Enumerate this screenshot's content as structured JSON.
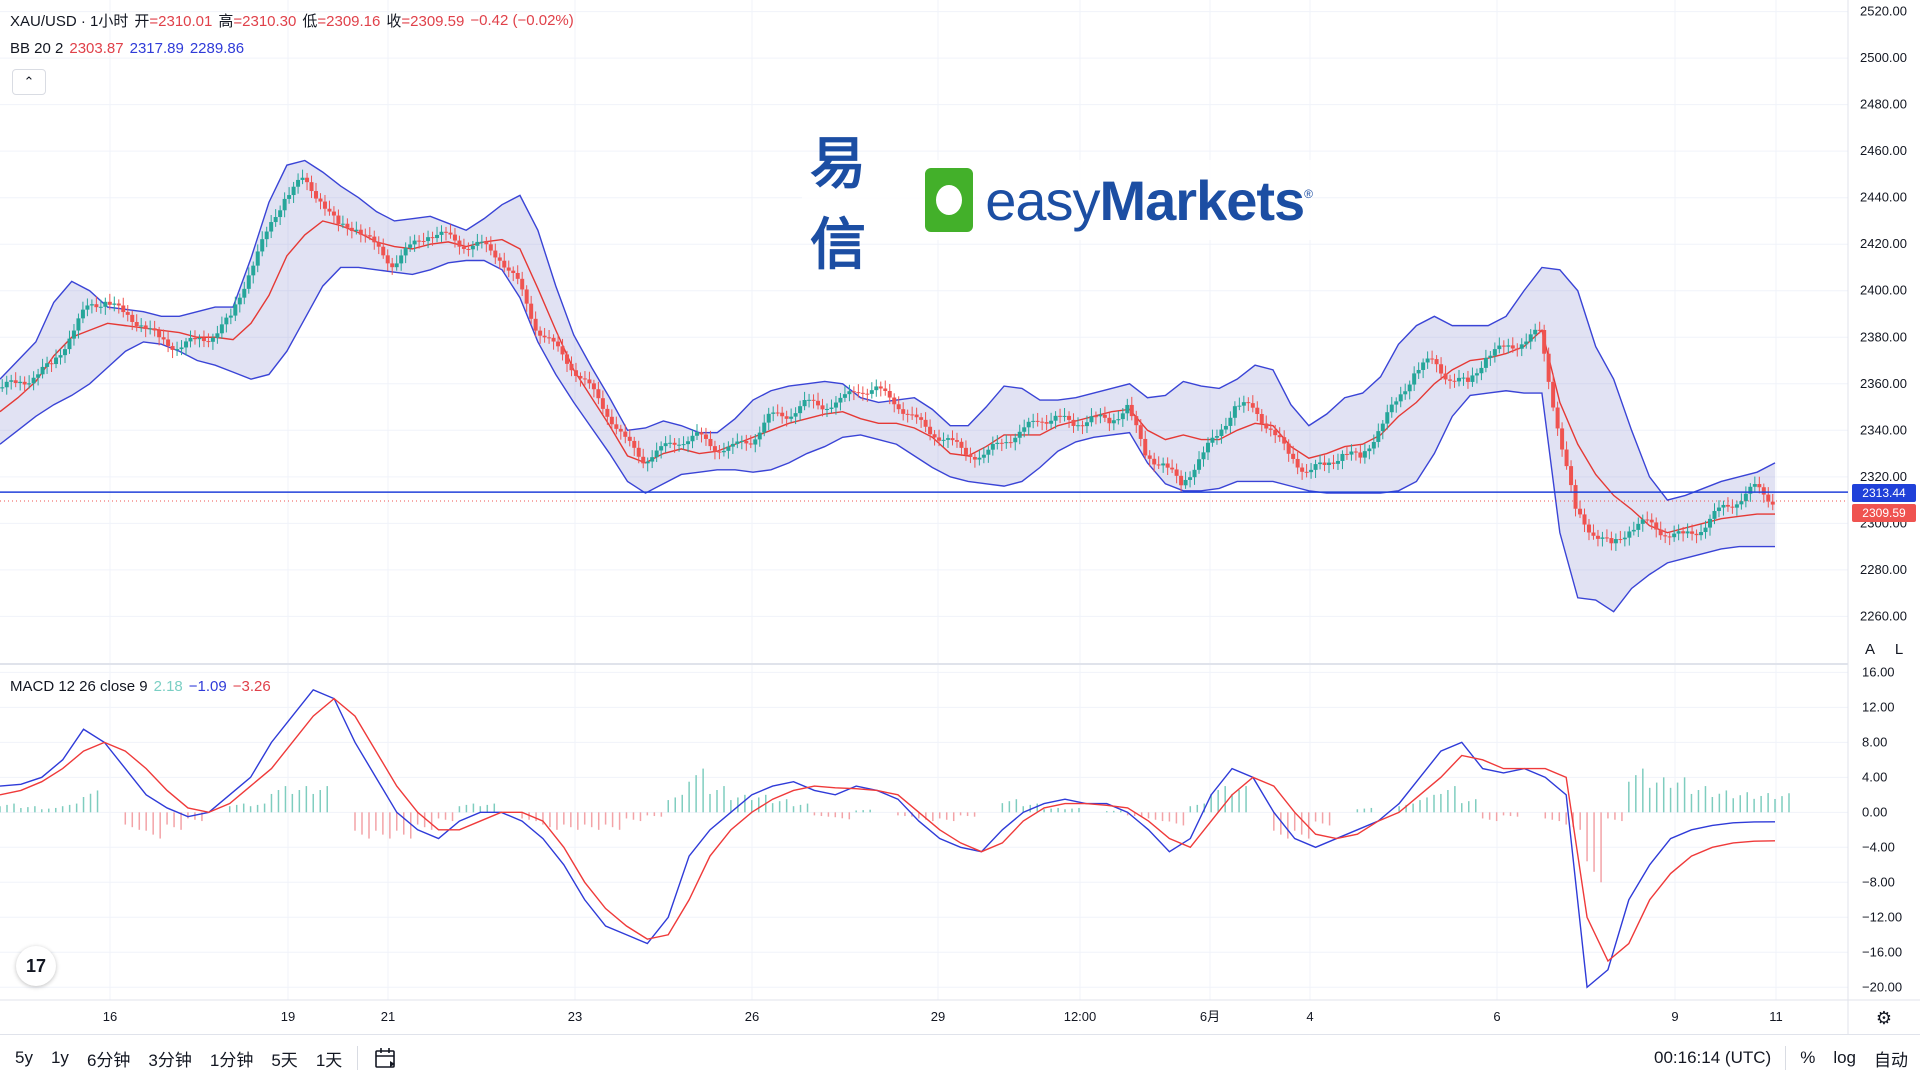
{
  "symbol": {
    "title": "XAU/USD · 1小时",
    "open_label": "开",
    "open": "=2310.01",
    "high_label": "高",
    "high": "=2310.30",
    "low_label": "低",
    "low": "=2309.16",
    "close_label": "收",
    "close": "=2309.59",
    "change": "−0.42 (−0.02%)"
  },
  "bb_legend": {
    "label": "BB 20 2",
    "basis": "2303.87",
    "upper": "2317.89",
    "lower": "2289.86"
  },
  "macd_legend": {
    "label": "MACD 12 26 close 9",
    "hist": "2.18",
    "macd": "−1.09",
    "signal": "−3.26"
  },
  "collapse_icon": "chevron-up-icon",
  "logo": {
    "cn": "易信",
    "en_light": "easy",
    "en_bold": "Markets",
    "reg": "®"
  },
  "price_tags": {
    "line": "2313.44",
    "last": "2309.59"
  },
  "scale_buttons": [
    "A",
    "L"
  ],
  "timeframes": [
    "5y",
    "1y",
    "6分钟",
    "3分钟",
    "1分钟",
    "5天",
    "1天"
  ],
  "status": {
    "time": "00:16:14 (UTC)",
    "percent": "%",
    "log": "log",
    "auto": "自动"
  },
  "colors": {
    "up": "#26a69a",
    "down": "#ef5350",
    "bb_band": "#3a44d6",
    "bb_basis": "#e53935",
    "bb_fill": "rgba(120,123,200,0.22)",
    "macd": "#2f3bd8",
    "signal": "#ef3a3a",
    "hline": "#2041d9"
  },
  "chart_data": [
    {
      "type": "line",
      "name": "XAU/USD 1h price with Bollinger Bands",
      "title": "XAU/USD · 1小时",
      "y_ticks": [
        2520,
        2500,
        2480,
        2460,
        2440,
        2420,
        2400,
        2380,
        2360,
        2340,
        2320,
        2300,
        2280,
        2260
      ],
      "ylim": [
        2255,
        2525
      ],
      "x_ticks": [
        "16",
        "19",
        "21",
        "23",
        "26",
        "29",
        "12:00",
        "6月",
        "4",
        "6",
        "9",
        "11"
      ],
      "horizontal_line": 2313.44,
      "last_price": 2309.59,
      "series": [
        {
          "name": "close",
          "x": [
            0,
            20,
            40,
            60,
            80,
            100,
            120,
            140,
            160,
            180,
            200,
            220,
            240,
            260,
            280,
            300,
            320,
            340,
            360,
            380,
            400,
            420,
            440,
            460,
            480,
            500,
            520,
            540,
            560,
            580,
            600,
            620,
            640,
            660,
            680,
            700,
            720,
            740,
            760,
            780,
            800,
            820,
            840,
            860,
            880,
            900,
            920,
            940,
            960,
            980,
            1000,
            1020,
            1040,
            1060,
            1080,
            1100,
            1120,
            1140,
            1160,
            1180,
            1200,
            1220,
            1240,
            1260,
            1280,
            1300,
            1320,
            1340,
            1360,
            1380,
            1400,
            1420,
            1440,
            1460,
            1480,
            1500,
            1520,
            1540,
            1560,
            1580,
            1600,
            1620,
            1640,
            1660,
            1680,
            1700,
            1720,
            1740,
            1760,
            1780
          ],
          "values": [
            2358,
            2360,
            2363,
            2368,
            2380,
            2393,
            2396,
            2390,
            2386,
            2379,
            2376,
            2378,
            2381,
            2388,
            2408,
            2424,
            2441,
            2447,
            2440,
            2427,
            2428,
            2419,
            2412,
            2418,
            2425,
            2423,
            2420,
            2419,
            2415,
            2403,
            2385,
            2376,
            2368,
            2358,
            2348,
            2335,
            2328,
            2331,
            2336,
            2337,
            2333,
            2332,
            2336,
            2345,
            2347,
            2351,
            2351,
            2352,
            2358,
            2357,
            2353,
            2345,
            2340,
            2335,
            2331,
            2328,
            2336,
            2338,
            2345,
            2345,
            2343,
            2345,
            2344,
            2350,
            2330,
            2325,
            2317,
            2327,
            2338,
            2350,
            2350,
            2340,
            2330,
            2322,
            2325,
            2330,
            2328,
            2340,
            2352,
            2365,
            2370,
            2362,
            2360,
            2372,
            2375,
            2378,
            2382,
            2342,
            2305,
            2296
          ],
          "values_tail": {
            "x": [
              1800,
              1820,
              1840,
              1860,
              1880,
              1900,
              1920,
              1940,
              1960,
              1980
            ],
            "values": [
              2290,
              2298,
              2300,
              2296,
              2294,
              2298,
              2305,
              2310,
              2315,
              2310
            ]
          }
        },
        {
          "name": "upper band",
          "values_desc": "approx",
          "values": [
            2362,
            2370,
            2378,
            2395,
            2404,
            2400,
            2393,
            2392,
            2391,
            2389,
            2389,
            2391,
            2393,
            2393,
            2414,
            2438,
            2454,
            2456,
            2451,
            2445,
            2440,
            2434,
            2430,
            2431,
            2432,
            2429,
            2426,
            2431,
            2437,
            2441,
            2426,
            2402,
            2381,
            2367,
            2354,
            2340,
            2341,
            2344,
            2342,
            2339,
            2339,
            2345,
            2353,
            2357,
            2359,
            2360,
            2361,
            2360,
            2354,
            2352,
            2353,
            2354,
            2349,
            2342,
            2342,
            2350,
            2359,
            2358,
            2353,
            2353,
            2354,
            2356,
            2358,
            2360,
            2354,
            2355,
            2361,
            2359,
            2358,
            2362,
            2368,
            2366,
            2351,
            2342,
            2347,
            2354,
            2356,
            2363,
            2377,
            2385,
            2389,
            2385,
            2385,
            2385,
            2389,
            2400,
            2410,
            2409,
            2400,
            2376
          ]
        },
        {
          "name": "lower band",
          "values": [
            2334,
            2340,
            2346,
            2351,
            2355,
            2360,
            2367,
            2374,
            2378,
            2377,
            2374,
            2370,
            2368,
            2365,
            2362,
            2364,
            2374,
            2388,
            2402,
            2410,
            2410,
            2409,
            2408,
            2407,
            2409,
            2412,
            2413,
            2413,
            2409,
            2397,
            2378,
            2364,
            2352,
            2341,
            2330,
            2318,
            2313,
            2317,
            2321,
            2322,
            2323,
            2323,
            2322,
            2323,
            2326,
            2330,
            2333,
            2337,
            2338,
            2336,
            2334,
            2329,
            2324,
            2320,
            2318,
            2317,
            2316,
            2318,
            2324,
            2331,
            2335,
            2337,
            2338,
            2339,
            2326,
            2317,
            2314,
            2314,
            2315,
            2318,
            2318,
            2318,
            2316,
            2314,
            2313,
            2313,
            2313,
            2313,
            2314,
            2318,
            2330,
            2346,
            2355,
            2356,
            2357,
            2356,
            2356,
            2296,
            2268,
            2267
          ]
        },
        {
          "name": "basis",
          "values": [
            2348,
            2354,
            2361,
            2372,
            2380,
            2383,
            2386,
            2385,
            2384,
            2383,
            2382,
            2380,
            2380,
            2379,
            2386,
            2398,
            2415,
            2424,
            2430,
            2428,
            2425,
            2421,
            2419,
            2418,
            2420,
            2421,
            2419,
            2421,
            2422,
            2418,
            2401,
            2383,
            2366,
            2354,
            2342,
            2329,
            2326,
            2330,
            2332,
            2330,
            2331,
            2334,
            2337,
            2340,
            2343,
            2345,
            2347,
            2348,
            2345,
            2343,
            2343,
            2341,
            2337,
            2330,
            2329,
            2333,
            2338,
            2338,
            2338,
            2342,
            2344,
            2346,
            2348,
            2349,
            2340,
            2336,
            2338,
            2336,
            2336,
            2340,
            2343,
            2342,
            2333,
            2328,
            2330,
            2333,
            2334,
            2338,
            2346,
            2352,
            2360,
            2366,
            2370,
            2371,
            2373,
            2376,
            2383,
            2352,
            2334,
            2321
          ]
        }
      ]
    },
    {
      "type": "bar",
      "name": "MACD 12 26 close 9",
      "y_ticks": [
        16,
        12,
        8,
        4,
        0,
        -4,
        -8,
        -12,
        -16,
        -20
      ],
      "ylim": [
        -21,
        16.5
      ],
      "series": [
        {
          "name": "MACD",
          "values": [
            3,
            3.2,
            4,
            6,
            9.5,
            8,
            5,
            2,
            0.5,
            -0.5,
            0,
            2,
            4,
            8,
            11,
            14,
            13,
            8,
            4,
            0,
            -2,
            -3,
            -1,
            0,
            0,
            -1,
            -3,
            -6,
            -10,
            -13,
            -14,
            -15,
            -12,
            -5,
            -2,
            0,
            2,
            3,
            3.5,
            2.5,
            2,
            3,
            2.5,
            1.5,
            -1,
            -3,
            -4,
            -4.5,
            -2,
            0,
            1,
            1.5,
            1,
            1,
            0,
            -2,
            -4.5,
            -3,
            2,
            5,
            4,
            0,
            -3,
            -4,
            -3,
            -2,
            -1,
            1,
            4,
            7,
            8,
            5,
            4.5,
            5,
            4,
            2,
            -20,
            -18,
            -10,
            -6,
            -3,
            -2,
            -1.5,
            -1.2,
            -1.1,
            -1.09
          ]
        },
        {
          "name": "signal",
          "values": [
            2,
            2.5,
            3.5,
            5,
            7,
            8,
            7,
            5,
            2.5,
            0.5,
            0,
            1,
            3,
            5,
            8,
            11,
            13,
            11,
            7,
            3,
            0,
            -2,
            -2,
            -1,
            0,
            0,
            -1,
            -4,
            -8,
            -11,
            -13,
            -14.5,
            -14,
            -10,
            -5,
            -2,
            0,
            1.5,
            2.5,
            3,
            2.8,
            2.7,
            2.5,
            2,
            0,
            -2,
            -3.5,
            -4.5,
            -3.5,
            -1,
            0.5,
            1,
            1,
            0.8,
            0.5,
            -1,
            -3,
            -4,
            -1,
            2,
            4,
            3,
            0,
            -2.5,
            -3,
            -2.5,
            -1,
            0,
            2,
            4,
            6.5,
            6,
            5,
            5,
            5,
            4,
            -12,
            -17,
            -15,
            -10,
            -7,
            -5,
            -4,
            -3.5,
            -3.3,
            -3.26
          ]
        },
        {
          "name": "histogram",
          "values": [
            1,
            0.7,
            0.5,
            1,
            2.5,
            0,
            -2,
            -3,
            -2,
            -1,
            0,
            1,
            1,
            3,
            3,
            3,
            0,
            -3,
            -3,
            -3,
            -2,
            -1,
            1,
            1,
            0,
            -1,
            -2,
            -2,
            -2,
            -2,
            -1,
            -0.5,
            2,
            5,
            3,
            2,
            2,
            1.5,
            1,
            -0.5,
            -0.8,
            0.3,
            0,
            -0.5,
            -1,
            -1,
            -0.5,
            0,
            1.5,
            1,
            0.5,
            0.5,
            0,
            0.2,
            -0.5,
            -1,
            -1.5,
            1,
            3,
            3,
            0,
            -3,
            -3,
            -1.5,
            0,
            0.5,
            0,
            1,
            2,
            3,
            1.5,
            -1,
            -0.5,
            0,
            -1,
            -2,
            -8,
            -1,
            5,
            4,
            4,
            3,
            2.5,
            2.3,
            2.2,
            2.18
          ]
        }
      ]
    }
  ]
}
